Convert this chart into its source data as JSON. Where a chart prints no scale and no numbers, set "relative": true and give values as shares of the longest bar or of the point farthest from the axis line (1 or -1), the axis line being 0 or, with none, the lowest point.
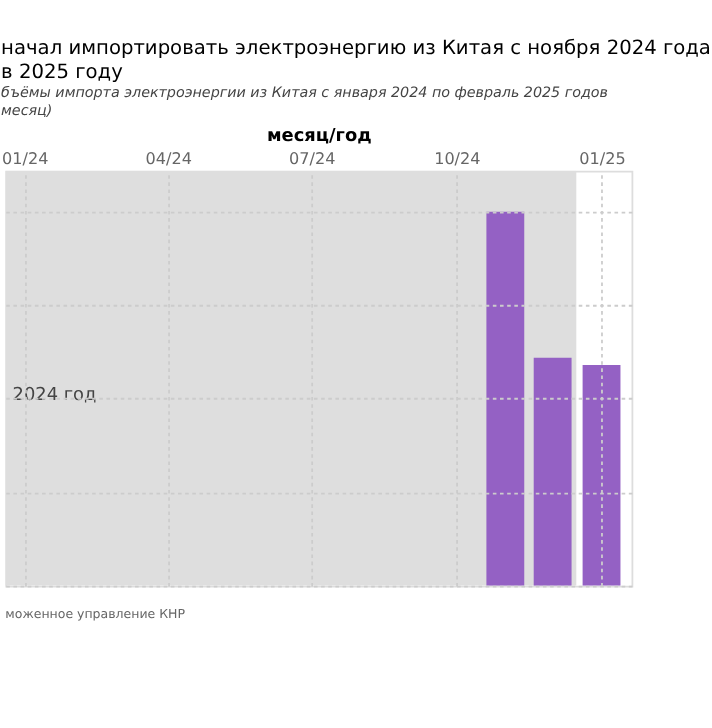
{
  "chart_data": {
    "type": "bar",
    "title": [
      "начал импортировать электроэнергию из Китая с ноября 2024 года",
      "в 2025 году"
    ],
    "subtitle": [
      "бъёмы импорта электроэнергии из Китая с января 2024 по февраль 2025 годов",
      "месяц)"
    ],
    "xlabel": "месяц/год",
    "x": [
      "2024-11-01",
      "2024-12-01",
      "2025-01-01"
    ],
    "values": [
      1,
      0.61,
      0.59
    ],
    "relative": true,
    "color": "#9461c4",
    "xlim": [
      "2023-12-20",
      "2025-01-20"
    ],
    "xticks": [
      {
        "value": "2024-01-01",
        "label": "01/24"
      },
      {
        "value": "2024-04-01",
        "label": "04/24"
      },
      {
        "value": "2024-07-01",
        "label": "07/24"
      },
      {
        "value": "2024-10-01",
        "label": "10/24"
      },
      {
        "value": "2025-01-01",
        "label": "01/25"
      }
    ],
    "bands": [
      {
        "axis": "x",
        "from": "2023-12-20",
        "to": "2024-12-16",
        "label": "2024 год",
        "color": "#dedede"
      }
    ],
    "grid": true,
    "annotations": [
      "моженное управление КНР"
    ]
  }
}
